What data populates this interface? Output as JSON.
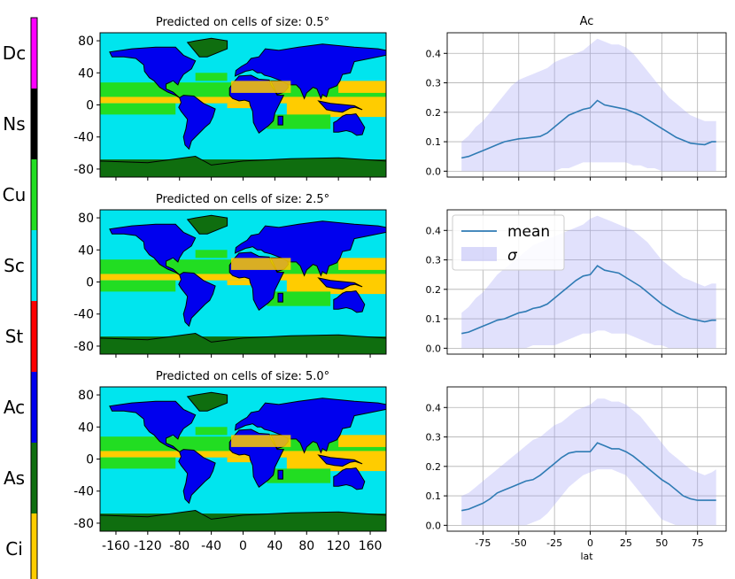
{
  "colorbar": {
    "labels": [
      "Dc",
      "Ns",
      "Cu",
      "Sc",
      "St",
      "Ac",
      "As",
      "Ci"
    ],
    "colors": [
      "#ff00ff",
      "#000000",
      "#22dd22",
      "#00e5ee",
      "#ff0000",
      "#0000ee",
      "#0f6e0f",
      "#ffcc00"
    ]
  },
  "map_panels": [
    {
      "title": "Predicted on cells of size: 0.5°"
    },
    {
      "title": "Predicted on cells of size: 2.5°"
    },
    {
      "title": "Predicted on cells of size: 5.0°"
    }
  ],
  "map_axes": {
    "y_ticks": [
      "80",
      "40",
      "0",
      "-40",
      "-80"
    ],
    "x_ticks": [
      "-160",
      "-120",
      "-80",
      "-40",
      "0",
      "40",
      "80",
      "120",
      "160"
    ]
  },
  "map_colors": {
    "ocean": "#00e5ee",
    "land": "#0000ee",
    "polar": "#0f6e0f",
    "cumulus": "#22dd22",
    "cirrus": "#ffcc00",
    "coast": "#000000"
  },
  "chart_data": [
    {
      "type": "line",
      "title": "Ac",
      "xlabel": "",
      "xlim": [
        -100,
        95
      ],
      "ylim": [
        -0.02,
        0.47
      ],
      "x_ticks": [
        -75,
        -50,
        -25,
        0,
        25,
        50,
        75
      ],
      "y_ticks": [
        0.0,
        0.1,
        0.2,
        0.3,
        0.4
      ],
      "grid": true,
      "series": [
        {
          "name": "mean",
          "x": [
            -90,
            -85,
            -80,
            -75,
            -70,
            -65,
            -60,
            -55,
            -50,
            -45,
            -40,
            -35,
            -30,
            -25,
            -20,
            -15,
            -10,
            -5,
            0,
            5,
            10,
            15,
            20,
            25,
            30,
            35,
            40,
            45,
            50,
            55,
            60,
            65,
            70,
            75,
            80,
            85,
            88
          ],
          "mean": [
            0.045,
            0.05,
            0.06,
            0.07,
            0.08,
            0.09,
            0.1,
            0.105,
            0.11,
            0.112,
            0.115,
            0.118,
            0.13,
            0.15,
            0.17,
            0.19,
            0.2,
            0.21,
            0.215,
            0.24,
            0.225,
            0.22,
            0.215,
            0.21,
            0.2,
            0.19,
            0.175,
            0.16,
            0.145,
            0.13,
            0.115,
            0.105,
            0.095,
            0.092,
            0.09,
            0.1,
            0.1
          ],
          "lower": [
            0.0,
            0.0,
            0.0,
            0.0,
            0.0,
            0.0,
            0.0,
            0.0,
            0.0,
            0.0,
            0.0,
            0.0,
            0.0,
            0.0,
            0.01,
            0.01,
            0.02,
            0.03,
            0.03,
            0.03,
            0.03,
            0.03,
            0.03,
            0.03,
            0.02,
            0.02,
            0.01,
            0.01,
            0.0,
            0.0,
            0.0,
            0.0,
            0.0,
            0.0,
            0.0,
            0.0,
            0.0
          ],
          "upper": [
            0.1,
            0.12,
            0.15,
            0.17,
            0.2,
            0.23,
            0.26,
            0.29,
            0.31,
            0.32,
            0.33,
            0.34,
            0.35,
            0.37,
            0.38,
            0.39,
            0.4,
            0.41,
            0.43,
            0.45,
            0.44,
            0.43,
            0.43,
            0.42,
            0.4,
            0.37,
            0.34,
            0.31,
            0.28,
            0.25,
            0.23,
            0.21,
            0.19,
            0.18,
            0.17,
            0.17,
            0.17
          ]
        }
      ]
    },
    {
      "type": "line",
      "title": "",
      "xlabel": "",
      "xlim": [
        -100,
        95
      ],
      "ylim": [
        -0.02,
        0.47
      ],
      "x_ticks": [
        -75,
        -50,
        -25,
        0,
        25,
        50,
        75
      ],
      "y_ticks": [
        0.0,
        0.1,
        0.2,
        0.3,
        0.4
      ],
      "grid": true,
      "legend": {
        "placement": "upper-left",
        "entries": [
          "mean",
          "σ"
        ]
      },
      "series": [
        {
          "name": "mean",
          "x": [
            -90,
            -85,
            -80,
            -75,
            -70,
            -65,
            -60,
            -55,
            -50,
            -45,
            -40,
            -35,
            -30,
            -25,
            -20,
            -15,
            -10,
            -5,
            0,
            5,
            10,
            15,
            20,
            25,
            30,
            35,
            40,
            45,
            50,
            55,
            60,
            65,
            70,
            75,
            80,
            85,
            88
          ],
          "mean": [
            0.05,
            0.055,
            0.065,
            0.075,
            0.085,
            0.095,
            0.1,
            0.11,
            0.12,
            0.125,
            0.135,
            0.14,
            0.15,
            0.17,
            0.19,
            0.21,
            0.23,
            0.245,
            0.25,
            0.28,
            0.265,
            0.26,
            0.255,
            0.24,
            0.225,
            0.21,
            0.19,
            0.17,
            0.15,
            0.135,
            0.12,
            0.11,
            0.1,
            0.095,
            0.09,
            0.095,
            0.095
          ],
          "lower": [
            0.0,
            0.0,
            0.0,
            0.0,
            0.0,
            0.0,
            0.0,
            0.0,
            0.0,
            0.0,
            0.01,
            0.01,
            0.01,
            0.01,
            0.02,
            0.03,
            0.04,
            0.05,
            0.05,
            0.06,
            0.06,
            0.05,
            0.05,
            0.05,
            0.04,
            0.03,
            0.02,
            0.01,
            0.01,
            0.0,
            0.0,
            0.0,
            0.0,
            0.0,
            0.0,
            0.0,
            0.0
          ],
          "upper": [
            0.12,
            0.14,
            0.17,
            0.19,
            0.22,
            0.25,
            0.27,
            0.29,
            0.31,
            0.33,
            0.35,
            0.36,
            0.37,
            0.38,
            0.39,
            0.4,
            0.41,
            0.42,
            0.44,
            0.45,
            0.44,
            0.43,
            0.42,
            0.41,
            0.4,
            0.38,
            0.36,
            0.33,
            0.3,
            0.28,
            0.26,
            0.24,
            0.23,
            0.22,
            0.21,
            0.22,
            0.22
          ]
        }
      ]
    },
    {
      "type": "line",
      "title": "",
      "xlabel": "lat",
      "xlim": [
        -100,
        95
      ],
      "ylim": [
        -0.02,
        0.47
      ],
      "x_ticks": [
        -75,
        -50,
        -25,
        0,
        25,
        50,
        75
      ],
      "y_ticks": [
        0.0,
        0.1,
        0.2,
        0.3,
        0.4
      ],
      "grid": true,
      "series": [
        {
          "name": "mean",
          "x": [
            -90,
            -85,
            -80,
            -75,
            -70,
            -65,
            -60,
            -55,
            -50,
            -45,
            -40,
            -35,
            -30,
            -25,
            -20,
            -15,
            -10,
            -5,
            0,
            5,
            10,
            15,
            20,
            25,
            30,
            35,
            40,
            45,
            50,
            55,
            60,
            65,
            70,
            75,
            80,
            85,
            88
          ],
          "mean": [
            0.05,
            0.055,
            0.065,
            0.075,
            0.09,
            0.11,
            0.12,
            0.13,
            0.14,
            0.15,
            0.155,
            0.17,
            0.19,
            0.21,
            0.23,
            0.245,
            0.25,
            0.25,
            0.25,
            0.28,
            0.27,
            0.26,
            0.26,
            0.25,
            0.235,
            0.215,
            0.195,
            0.175,
            0.155,
            0.14,
            0.12,
            0.1,
            0.09,
            0.085,
            0.085,
            0.085,
            0.085
          ],
          "lower": [
            0.0,
            0.0,
            0.0,
            0.0,
            0.0,
            0.0,
            0.0,
            0.0,
            0.0,
            0.0,
            0.01,
            0.02,
            0.04,
            0.07,
            0.1,
            0.13,
            0.15,
            0.17,
            0.18,
            0.19,
            0.19,
            0.19,
            0.18,
            0.17,
            0.14,
            0.11,
            0.08,
            0.05,
            0.02,
            0.01,
            0.0,
            0.0,
            0.0,
            0.0,
            0.0,
            0.0,
            0.0
          ],
          "upper": [
            0.1,
            0.11,
            0.13,
            0.15,
            0.17,
            0.19,
            0.21,
            0.23,
            0.25,
            0.27,
            0.29,
            0.3,
            0.32,
            0.34,
            0.35,
            0.37,
            0.39,
            0.4,
            0.41,
            0.43,
            0.43,
            0.42,
            0.42,
            0.41,
            0.39,
            0.37,
            0.34,
            0.31,
            0.28,
            0.25,
            0.23,
            0.21,
            0.19,
            0.18,
            0.17,
            0.18,
            0.19
          ]
        }
      ]
    }
  ]
}
